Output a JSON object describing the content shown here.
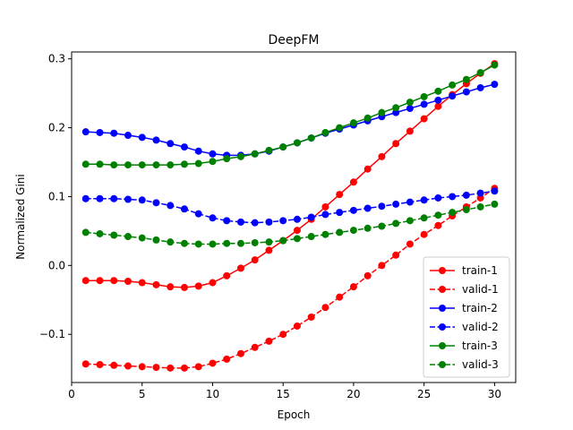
{
  "chart_data": {
    "type": "line",
    "title": "DeepFM",
    "xlabel": "Epoch",
    "ylabel": "Normalized Gini",
    "xlim": [
      0,
      31.5
    ],
    "ylim": [
      -0.17,
      0.31
    ],
    "xticks": [
      0,
      5,
      10,
      15,
      20,
      25,
      30
    ],
    "yticks": [
      -0.1,
      0.0,
      0.1,
      0.2,
      0.3
    ],
    "ytick_labels": [
      "−0.1",
      "0.0",
      "0.1",
      "0.2",
      "0.3"
    ],
    "grid": false,
    "legend_position": "lower-right",
    "x": [
      1,
      2,
      3,
      4,
      5,
      6,
      7,
      8,
      9,
      10,
      11,
      12,
      13,
      14,
      15,
      16,
      17,
      18,
      19,
      20,
      21,
      22,
      23,
      24,
      25,
      26,
      27,
      28,
      29,
      30
    ],
    "series": [
      {
        "name": "train-1",
        "color": "#ff0000",
        "style": "solid",
        "values": [
          -0.022,
          -0.022,
          -0.022,
          -0.023,
          -0.025,
          -0.028,
          -0.031,
          -0.032,
          -0.03,
          -0.025,
          -0.015,
          -0.004,
          0.008,
          0.022,
          0.036,
          0.051,
          0.067,
          0.085,
          0.103,
          0.121,
          0.14,
          0.158,
          0.177,
          0.195,
          0.213,
          0.231,
          0.248,
          0.264,
          0.279,
          0.293
        ]
      },
      {
        "name": "valid-1",
        "color": "#ff0000",
        "style": "dashed",
        "values": [
          -0.143,
          -0.144,
          -0.145,
          -0.146,
          -0.147,
          -0.148,
          -0.149,
          -0.149,
          -0.147,
          -0.142,
          -0.136,
          -0.128,
          -0.119,
          -0.11,
          -0.1,
          -0.088,
          -0.075,
          -0.061,
          -0.046,
          -0.031,
          -0.015,
          0.0,
          0.015,
          0.031,
          0.045,
          0.058,
          0.072,
          0.085,
          0.098,
          0.112
        ]
      },
      {
        "name": "train-2",
        "color": "#0000ff",
        "style": "solid",
        "values": [
          0.194,
          0.193,
          0.192,
          0.189,
          0.186,
          0.182,
          0.177,
          0.172,
          0.166,
          0.162,
          0.16,
          0.16,
          0.162,
          0.166,
          0.172,
          0.178,
          0.185,
          0.192,
          0.198,
          0.204,
          0.21,
          0.216,
          0.222,
          0.228,
          0.234,
          0.24,
          0.246,
          0.252,
          0.258,
          0.263
        ]
      },
      {
        "name": "valid-2",
        "color": "#0000ff",
        "style": "dashed",
        "values": [
          0.097,
          0.097,
          0.097,
          0.096,
          0.095,
          0.091,
          0.087,
          0.082,
          0.075,
          0.069,
          0.065,
          0.063,
          0.062,
          0.063,
          0.065,
          0.067,
          0.07,
          0.074,
          0.077,
          0.08,
          0.083,
          0.086,
          0.089,
          0.092,
          0.095,
          0.098,
          0.1,
          0.102,
          0.105,
          0.108
        ]
      },
      {
        "name": "train-3",
        "color": "#008000",
        "style": "solid",
        "values": [
          0.147,
          0.147,
          0.146,
          0.146,
          0.146,
          0.146,
          0.146,
          0.147,
          0.148,
          0.151,
          0.155,
          0.158,
          0.162,
          0.167,
          0.172,
          0.178,
          0.185,
          0.193,
          0.2,
          0.207,
          0.214,
          0.222,
          0.229,
          0.237,
          0.245,
          0.253,
          0.262,
          0.27,
          0.28,
          0.291
        ]
      },
      {
        "name": "valid-3",
        "color": "#008000",
        "style": "dashed",
        "values": [
          0.048,
          0.046,
          0.044,
          0.042,
          0.04,
          0.037,
          0.034,
          0.032,
          0.031,
          0.031,
          0.032,
          0.032,
          0.033,
          0.034,
          0.036,
          0.039,
          0.042,
          0.045,
          0.048,
          0.051,
          0.054,
          0.057,
          0.061,
          0.065,
          0.069,
          0.073,
          0.077,
          0.081,
          0.085,
          0.089
        ]
      }
    ]
  }
}
